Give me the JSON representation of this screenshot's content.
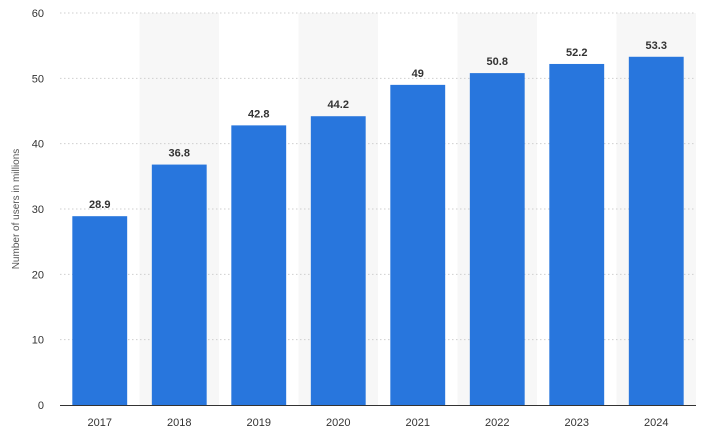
{
  "chart_data": {
    "type": "bar",
    "categories": [
      "2017",
      "2018",
      "2019",
      "2020",
      "2021",
      "2022",
      "2023",
      "2024"
    ],
    "values": [
      28.9,
      36.8,
      42.8,
      44.2,
      49,
      50.8,
      52.2,
      53.3
    ],
    "value_labels": [
      "28.9",
      "36.8",
      "42.8",
      "44.2",
      "49",
      "50.8",
      "52.2",
      "53.3"
    ],
    "title": "",
    "xlabel": "",
    "ylabel": "Number of users in millions",
    "ylim": [
      0,
      60
    ],
    "yticks": [
      0,
      10,
      20,
      30,
      40,
      50,
      60
    ],
    "ytick_labels": [
      "0",
      "10",
      "20",
      "30",
      "40",
      "50",
      "60"
    ],
    "grid": true,
    "legend": "none",
    "bar_color": "#2876dd",
    "band_color": "#f7f7f7"
  }
}
